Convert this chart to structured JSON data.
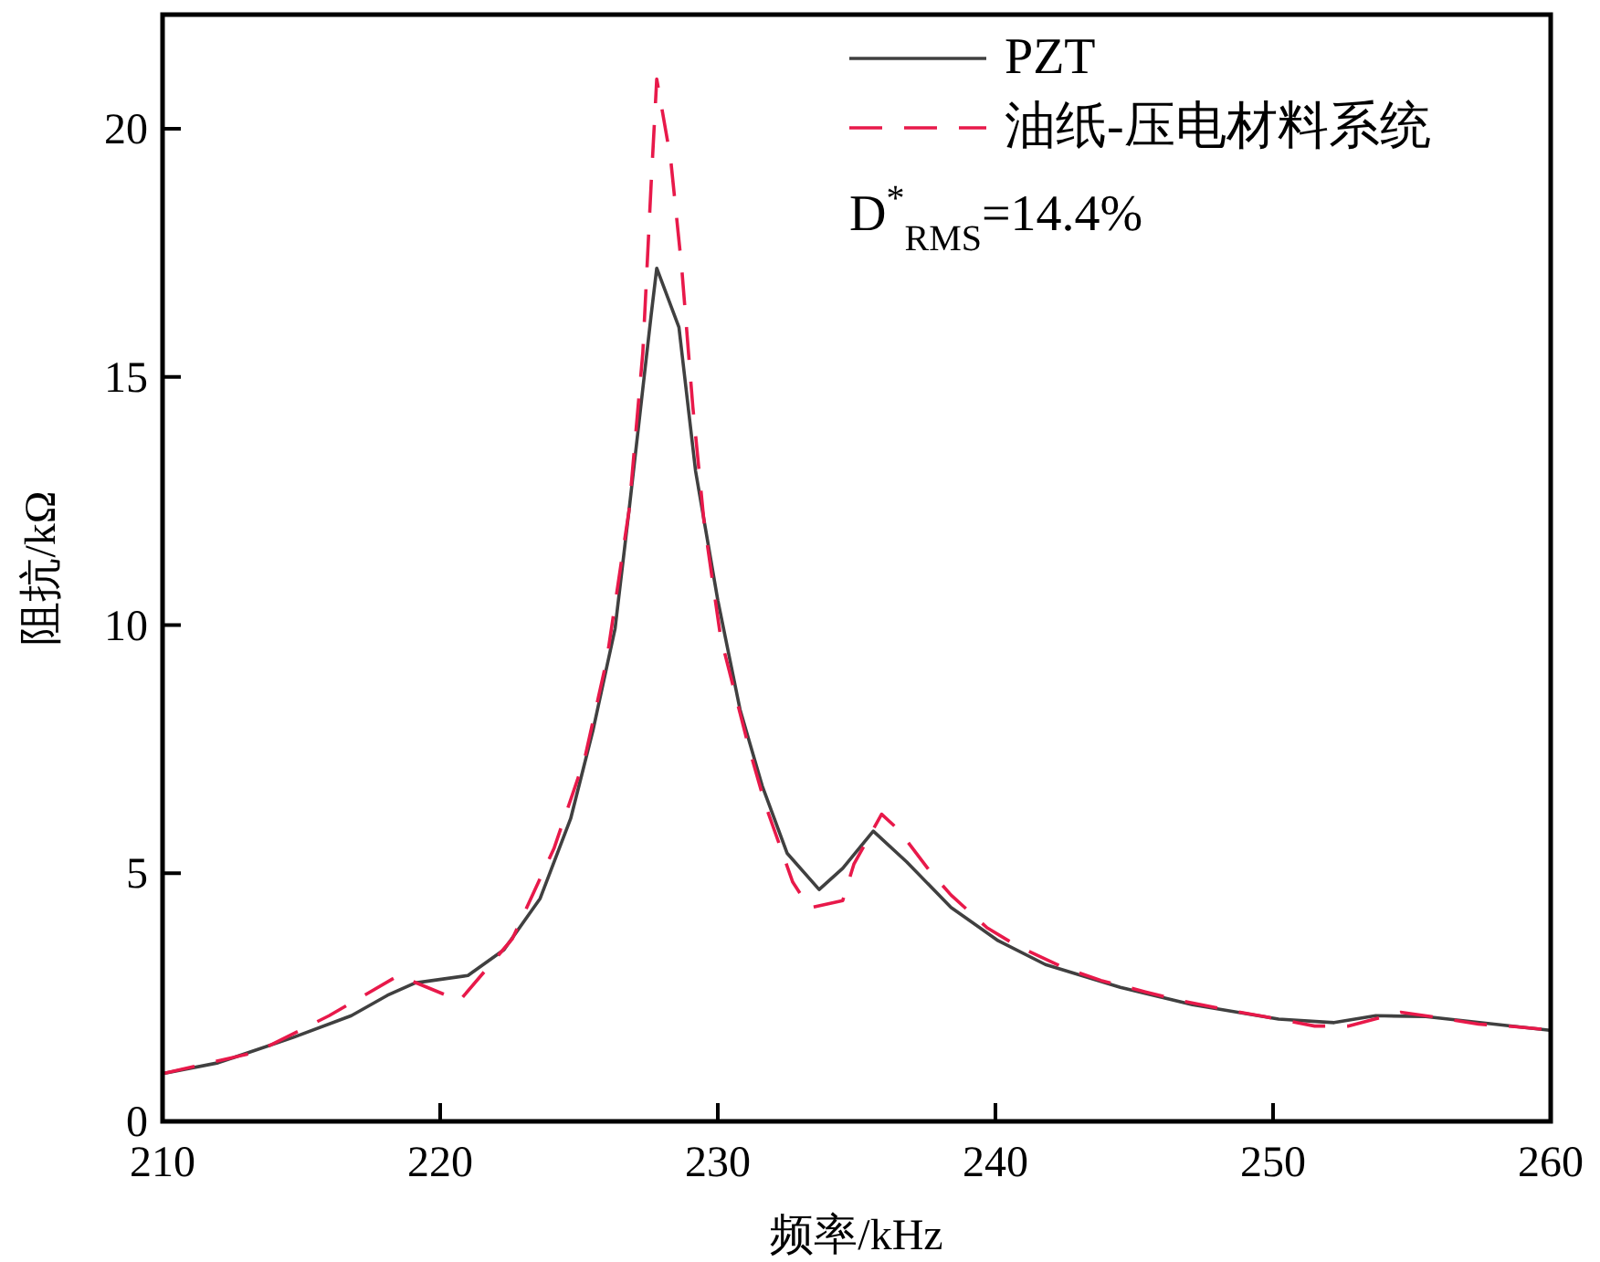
{
  "chart_data": {
    "type": "line",
    "xlabel": "频率/kHz",
    "ylabel": "阻抗/kΩ",
    "xlim": [
      210,
      260
    ],
    "ylim": [
      0,
      22.3
    ],
    "xticks": [
      210,
      220,
      230,
      240,
      250,
      260
    ],
    "yticks": [
      0,
      5,
      10,
      15,
      20
    ],
    "grid": false,
    "legend": "top right",
    "annotations": [
      "D$^{*}$$_{RMS}$=14.4%"
    ],
    "series": [
      {
        "name": "PZT",
        "color": "#404040",
        "line_style": "solid",
        "x": [
          210,
          212,
          214.7,
          216.8,
          218.1,
          219.1,
          221,
          222.3,
          223.6,
          224.7,
          225.5,
          226.3,
          226.8,
          227.6,
          227.8,
          228.6,
          229.2,
          230,
          230.8,
          231.6,
          232.5,
          233.65,
          234.5,
          235.6,
          236.8,
          238.4,
          240.1,
          241.8,
          244.5,
          247.1,
          250.2,
          252.2,
          253.7,
          255.5,
          259.9,
          260
        ],
        "values": [
          0.96,
          1.18,
          1.69,
          2.13,
          2.54,
          2.79,
          2.94,
          3.46,
          4.49,
          6.1,
          7.87,
          9.93,
          12.3,
          16.25,
          17.19,
          16.0,
          13.1,
          10.5,
          8.3,
          6.76,
          5.4,
          4.67,
          5.1,
          5.85,
          5.23,
          4.31,
          3.64,
          3.16,
          2.7,
          2.35,
          2.06,
          1.99,
          2.13,
          2.11,
          1.84,
          1.83
        ]
      },
      {
        "name": "油纸-压电材料系统",
        "color": "#e8194a",
        "line_style": "dashed",
        "x": [
          210,
          213.4,
          216,
          218.5,
          220.7,
          222.6,
          224.1,
          225.2,
          226,
          226.8,
          227.3,
          227.6,
          227.8,
          228.3,
          228.7,
          229.1,
          229.5,
          230.1,
          231.1,
          231.7,
          232.7,
          233.3,
          234.5,
          234.9,
          235.9,
          236.5,
          237.6,
          238.4,
          239.7,
          240.8,
          242.5,
          243.8,
          245.4,
          246.7,
          248.4,
          249.7,
          251.5,
          252.7,
          254.6,
          255.7,
          257.4,
          258.7,
          260
        ],
        "values": [
          0.96,
          1.4,
          2.13,
          2.94,
          2.43,
          3.68,
          5.5,
          7.3,
          9.3,
          12.3,
          15.5,
          18.9,
          21.0,
          19.4,
          17.2,
          14.4,
          12.1,
          9.76,
          7.57,
          6.4,
          4.82,
          4.3,
          4.45,
          5.18,
          6.19,
          5.88,
          5.07,
          4.56,
          3.9,
          3.53,
          3.09,
          2.84,
          2.61,
          2.43,
          2.24,
          2.11,
          1.92,
          1.92,
          2.2,
          2.11,
          1.96,
          1.91,
          1.84
        ]
      }
    ]
  }
}
